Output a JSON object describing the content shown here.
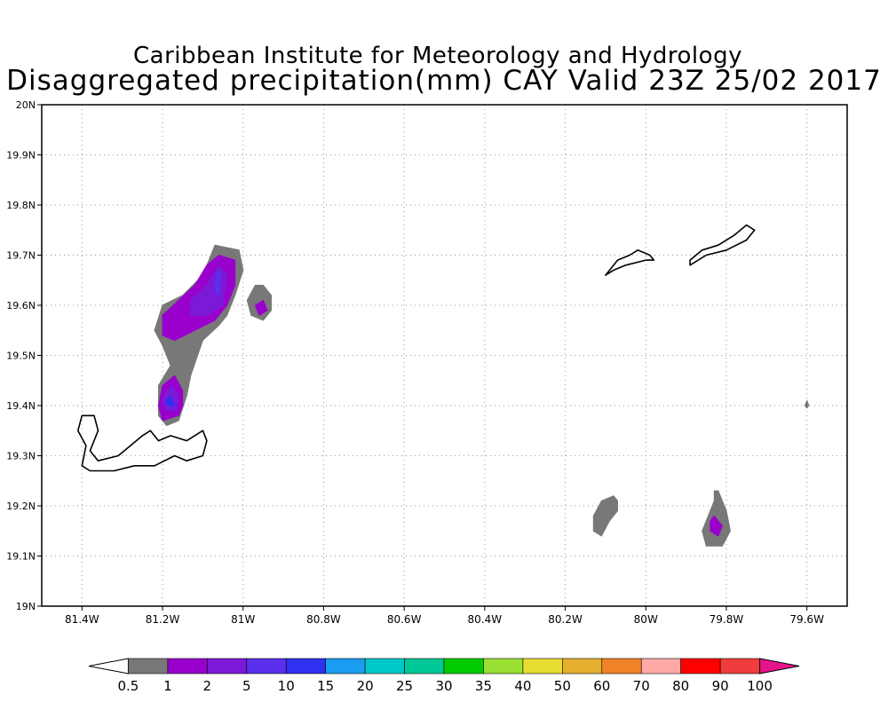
{
  "titles": {
    "line1": "Caribbean Institute for Meteorology and Hydrology",
    "line2": "Disaggregated precipitation(mm) CAY Valid 23Z 25/02 2017"
  },
  "map": {
    "lon_range": [
      -81.5,
      -79.5
    ],
    "lat_range": [
      19.0,
      20.0
    ],
    "gridlines": "dotted",
    "x_ticks": [
      {
        "value": -81.4,
        "label": "81.4W"
      },
      {
        "value": -81.2,
        "label": "81.2W"
      },
      {
        "value": -81.0,
        "label": "81W"
      },
      {
        "value": -80.8,
        "label": "80.8W"
      },
      {
        "value": -80.6,
        "label": "80.6W"
      },
      {
        "value": -80.4,
        "label": "80.4W"
      },
      {
        "value": -80.2,
        "label": "80.2W"
      },
      {
        "value": -80.0,
        "label": "80W"
      },
      {
        "value": -79.8,
        "label": "79.8W"
      },
      {
        "value": -79.6,
        "label": "79.6W"
      }
    ],
    "y_ticks": [
      {
        "value": 19.0,
        "label": "19N"
      },
      {
        "value": 19.1,
        "label": "19.1N"
      },
      {
        "value": 19.2,
        "label": "19.2N"
      },
      {
        "value": 19.3,
        "label": "19.3N"
      },
      {
        "value": 19.4,
        "label": "19.4N"
      },
      {
        "value": 19.5,
        "label": "19.5N"
      },
      {
        "value": 19.6,
        "label": "19.6N"
      },
      {
        "value": 19.7,
        "label": "19.7N"
      },
      {
        "value": 19.8,
        "label": "19.8N"
      },
      {
        "value": 19.9,
        "label": "19.9N"
      },
      {
        "value": 20.0,
        "label": "20N"
      }
    ],
    "precip_areas": [
      {
        "level": "0.5",
        "color": "#787878",
        "points": [
          [
            -81.07,
            19.72
          ],
          [
            -81.01,
            19.71
          ],
          [
            -81.0,
            19.67
          ],
          [
            -81.02,
            19.62
          ],
          [
            -81.04,
            19.58
          ],
          [
            -81.06,
            19.56
          ],
          [
            -81.1,
            19.53
          ],
          [
            -81.13,
            19.46
          ],
          [
            -81.14,
            19.42
          ],
          [
            -81.16,
            19.37
          ],
          [
            -81.19,
            19.36
          ],
          [
            -81.21,
            19.38
          ],
          [
            -81.21,
            19.44
          ],
          [
            -81.18,
            19.48
          ],
          [
            -81.2,
            19.52
          ],
          [
            -81.22,
            19.55
          ],
          [
            -81.2,
            19.6
          ],
          [
            -81.15,
            19.62
          ],
          [
            -81.1,
            19.66
          ]
        ]
      },
      {
        "level": "1",
        "color": "#9900cc",
        "points": [
          [
            -81.06,
            19.7
          ],
          [
            -81.02,
            19.69
          ],
          [
            -81.02,
            19.64
          ],
          [
            -81.04,
            19.6
          ],
          [
            -81.07,
            19.57
          ],
          [
            -81.12,
            19.55
          ],
          [
            -81.17,
            19.53
          ],
          [
            -81.2,
            19.54
          ],
          [
            -81.2,
            19.58
          ],
          [
            -81.16,
            19.61
          ],
          [
            -81.12,
            19.64
          ],
          [
            -81.09,
            19.68
          ]
        ]
      },
      {
        "level": "2",
        "color": "#7a1ad6",
        "points": [
          [
            -81.06,
            19.68
          ],
          [
            -81.04,
            19.66
          ],
          [
            -81.05,
            19.6
          ],
          [
            -81.09,
            19.58
          ],
          [
            -81.13,
            19.58
          ],
          [
            -81.13,
            19.61
          ],
          [
            -81.09,
            19.64
          ]
        ]
      },
      {
        "level": "5",
        "color": "#5a30ee",
        "points": [
          [
            -81.065,
            19.67
          ],
          [
            -81.055,
            19.66
          ],
          [
            -81.06,
            19.62
          ],
          [
            -81.07,
            19.63
          ]
        ]
      },
      {
        "level": "0.5",
        "color": "#787878",
        "points": [
          [
            -80.95,
            19.64
          ],
          [
            -80.93,
            19.62
          ],
          [
            -80.93,
            19.59
          ],
          [
            -80.95,
            19.57
          ],
          [
            -80.98,
            19.58
          ],
          [
            -80.99,
            19.61
          ],
          [
            -80.97,
            19.64
          ]
        ]
      },
      {
        "level": "1",
        "color": "#9900cc",
        "points": [
          [
            -80.95,
            19.61
          ],
          [
            -80.94,
            19.59
          ],
          [
            -80.96,
            19.58
          ],
          [
            -80.97,
            19.6
          ]
        ]
      },
      {
        "level": "1",
        "color": "#9900cc",
        "points": [
          [
            -81.17,
            19.46
          ],
          [
            -81.15,
            19.43
          ],
          [
            -81.15,
            19.4
          ],
          [
            -81.16,
            19.38
          ],
          [
            -81.2,
            19.37
          ],
          [
            -81.21,
            19.4
          ],
          [
            -81.2,
            19.44
          ]
        ]
      },
      {
        "level": "2",
        "color": "#7a1ad6",
        "points": [
          [
            -81.175,
            19.44
          ],
          [
            -81.16,
            19.42
          ],
          [
            -81.165,
            19.39
          ],
          [
            -81.19,
            19.39
          ],
          [
            -81.2,
            19.41
          ],
          [
            -81.19,
            19.43
          ]
        ]
      },
      {
        "level": "10",
        "color": "#3030f0",
        "points": [
          [
            -81.18,
            19.42
          ],
          [
            -81.17,
            19.4
          ],
          [
            -81.19,
            19.4
          ],
          [
            -81.19,
            19.41
          ]
        ]
      },
      {
        "level": "0.5",
        "color": "#787878",
        "points": [
          [
            -80.08,
            19.22
          ],
          [
            -80.07,
            19.21
          ],
          [
            -80.07,
            19.19
          ],
          [
            -80.09,
            19.17
          ],
          [
            -80.11,
            19.14
          ],
          [
            -80.13,
            19.15
          ],
          [
            -80.13,
            19.18
          ],
          [
            -80.11,
            19.21
          ]
        ]
      },
      {
        "level": "0.5",
        "color": "#787878",
        "points": [
          [
            -79.82,
            19.23
          ],
          [
            -79.81,
            19.21
          ],
          [
            -79.8,
            19.19
          ],
          [
            -79.79,
            19.15
          ],
          [
            -79.81,
            19.12
          ],
          [
            -79.85,
            19.12
          ],
          [
            -79.86,
            19.15
          ],
          [
            -79.84,
            19.19
          ],
          [
            -79.83,
            19.21
          ],
          [
            -79.83,
            19.23
          ]
        ]
      },
      {
        "level": "1",
        "color": "#9900cc",
        "points": [
          [
            -79.83,
            19.18
          ],
          [
            -79.81,
            19.16
          ],
          [
            -79.82,
            19.14
          ],
          [
            -79.84,
            19.15
          ],
          [
            -79.84,
            19.17
          ]
        ]
      },
      {
        "level": "0.5",
        "color": "#787878",
        "points": [
          [
            -79.6,
            19.41
          ],
          [
            -79.595,
            19.4
          ],
          [
            -79.6,
            19.395
          ],
          [
            -79.605,
            19.4
          ]
        ]
      }
    ],
    "coastlines": [
      {
        "name": "Grand Cayman",
        "points": [
          [
            -81.4,
            19.38
          ],
          [
            -81.37,
            19.38
          ],
          [
            -81.36,
            19.35
          ],
          [
            -81.38,
            19.31
          ],
          [
            -81.36,
            19.29
          ],
          [
            -81.31,
            19.3
          ],
          [
            -81.28,
            19.32
          ],
          [
            -81.25,
            19.34
          ],
          [
            -81.23,
            19.35
          ],
          [
            -81.21,
            19.33
          ],
          [
            -81.18,
            19.34
          ],
          [
            -81.14,
            19.33
          ],
          [
            -81.1,
            19.35
          ],
          [
            -81.09,
            19.33
          ],
          [
            -81.1,
            19.3
          ],
          [
            -81.14,
            19.29
          ],
          [
            -81.17,
            19.3
          ],
          [
            -81.22,
            19.28
          ],
          [
            -81.27,
            19.28
          ],
          [
            -81.32,
            19.27
          ],
          [
            -81.38,
            19.27
          ],
          [
            -81.4,
            19.28
          ],
          [
            -81.39,
            19.32
          ],
          [
            -81.41,
            19.35
          ]
        ]
      },
      {
        "name": "Little Cayman",
        "points": [
          [
            -80.1,
            19.66
          ],
          [
            -80.07,
            19.69
          ],
          [
            -80.04,
            19.7
          ],
          [
            -80.02,
            19.71
          ],
          [
            -79.99,
            19.7
          ],
          [
            -79.98,
            19.69
          ],
          [
            -80.0,
            19.69
          ],
          [
            -80.05,
            19.68
          ],
          [
            -80.08,
            19.67
          ]
        ]
      },
      {
        "name": "Cayman Brac",
        "points": [
          [
            -79.89,
            19.69
          ],
          [
            -79.86,
            19.71
          ],
          [
            -79.82,
            19.72
          ],
          [
            -79.78,
            19.74
          ],
          [
            -79.75,
            19.76
          ],
          [
            -79.73,
            19.75
          ],
          [
            -79.75,
            19.73
          ],
          [
            -79.8,
            19.71
          ],
          [
            -79.85,
            19.7
          ],
          [
            -79.89,
            19.68
          ]
        ]
      }
    ]
  },
  "colorbar": {
    "labels": [
      "0.5",
      "1",
      "2",
      "5",
      "10",
      "15",
      "20",
      "25",
      "30",
      "35",
      "40",
      "50",
      "60",
      "70",
      "80",
      "90",
      "100"
    ],
    "under_color": "#ffffff",
    "colors": [
      "#787878",
      "#9900cc",
      "#7a1ad6",
      "#5a30ee",
      "#3030f0",
      "#1a9cf0",
      "#00c8c8",
      "#00c896",
      "#00cc00",
      "#99e033",
      "#e6dc32",
      "#e6af2d",
      "#f08228",
      "#ffa8a8",
      "#ff0000",
      "#f03c3c"
    ],
    "over_color": "#e6148c"
  }
}
